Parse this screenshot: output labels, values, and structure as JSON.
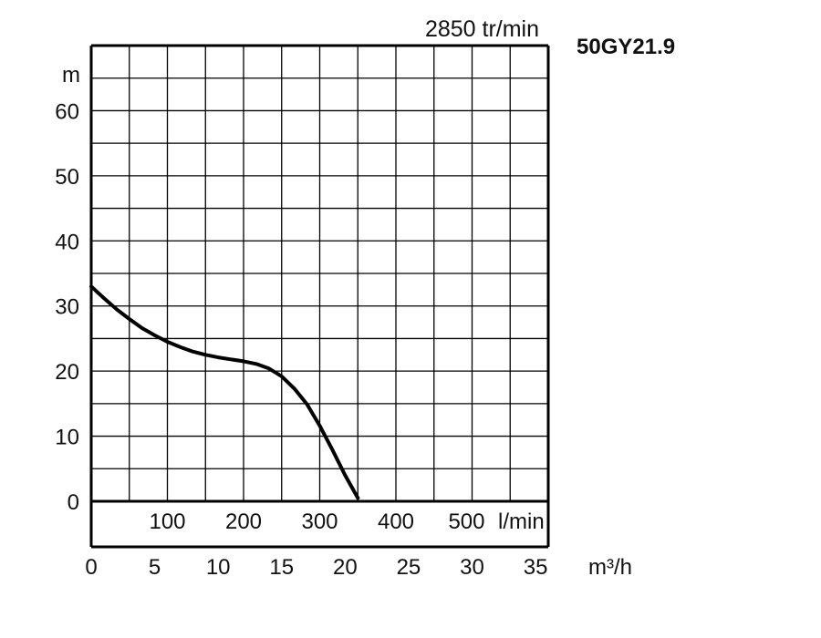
{
  "chart_data": {
    "type": "line",
    "title": "50GY21.9",
    "speed": "2850 tr/min",
    "ylabel": "m",
    "xlabel_lmin": "l/min",
    "xlabel_m3h": "m³/h",
    "ylim": [
      -7,
      70
    ],
    "xlim_m3h": [
      0,
      36
    ],
    "y_ticks": [
      "0",
      "10",
      "20",
      "30",
      "40",
      "50",
      "60"
    ],
    "y_tick_values": [
      0,
      10,
      20,
      30,
      40,
      50,
      60
    ],
    "lmin_ticks": [
      "100",
      "200",
      "300",
      "400",
      "500"
    ],
    "lmin_tick_values": [
      100,
      200,
      300,
      400,
      500
    ],
    "m3h_ticks": [
      "0",
      "5",
      "10",
      "15",
      "20",
      "25",
      "30",
      "35"
    ],
    "m3h_tick_values": [
      0,
      5,
      10,
      15,
      20,
      25,
      30,
      35
    ],
    "grid": true,
    "series": [
      {
        "x": [
          0,
          1,
          2,
          3,
          4,
          5,
          6,
          7,
          8,
          9,
          10,
          11,
          12,
          13,
          14,
          15,
          16,
          17,
          18,
          19,
          20,
          21
        ],
        "y": [
          33,
          31.2,
          29.5,
          28,
          26.6,
          25.5,
          24.5,
          23.7,
          23,
          22.5,
          22.1,
          21.8,
          21.5,
          21.1,
          20.4,
          19.2,
          17.3,
          14.9,
          11.6,
          7.9,
          4,
          0.5
        ],
        "color": "#000000"
      }
    ]
  }
}
